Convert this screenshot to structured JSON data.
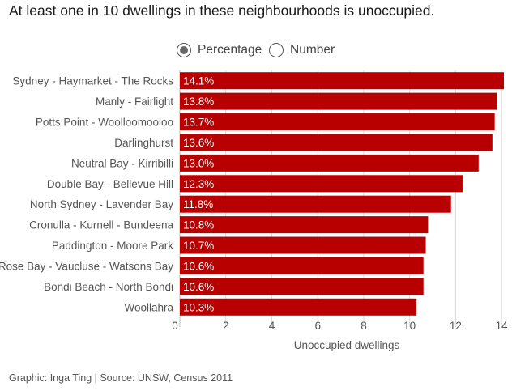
{
  "title": "At least one in 10 dwellings in these neighbourhoods is unoccupied.",
  "toggle": {
    "options": [
      {
        "label": "Percentage",
        "selected": true
      },
      {
        "label": "Number",
        "selected": false
      }
    ]
  },
  "chart_data": {
    "type": "bar",
    "orientation": "horizontal",
    "title": "At least one in 10 dwellings in these neighbourhoods is unoccupied.",
    "categories": [
      "Sydney - Haymarket - The Rocks",
      "Manly - Fairlight",
      "Potts Point - Woolloomooloo",
      "Darlinghurst",
      "Neutral Bay - Kirribilli",
      "Double Bay - Bellevue Hill",
      "North Sydney - Lavender Bay",
      "Cronulla - Kurnell - Bundeena",
      "Paddington - Moore Park",
      "Rose Bay - Vaucluse - Watsons Bay",
      "Bondi Beach - North Bondi",
      "Woollahra"
    ],
    "values": [
      14.1,
      13.8,
      13.7,
      13.6,
      13.0,
      12.3,
      11.8,
      10.8,
      10.7,
      10.6,
      10.6,
      10.3
    ],
    "labels": [
      "14.1%",
      "13.8%",
      "13.7%",
      "13.6%",
      "13.0%",
      "12.3%",
      "11.8%",
      "10.8%",
      "10.7%",
      "10.6%",
      "10.6%",
      "10.3%"
    ],
    "xlabel": "Unoccupied dwellings",
    "ylabel": "",
    "xlim": [
      0,
      14.1
    ],
    "xticks": [
      0,
      2,
      4,
      6,
      8,
      10,
      12,
      14
    ],
    "grid": true,
    "bar_color": "#b80000",
    "label_color": "#ffffff"
  },
  "footer": "Graphic: Inga Ting | Source: UNSW, Census 2011"
}
